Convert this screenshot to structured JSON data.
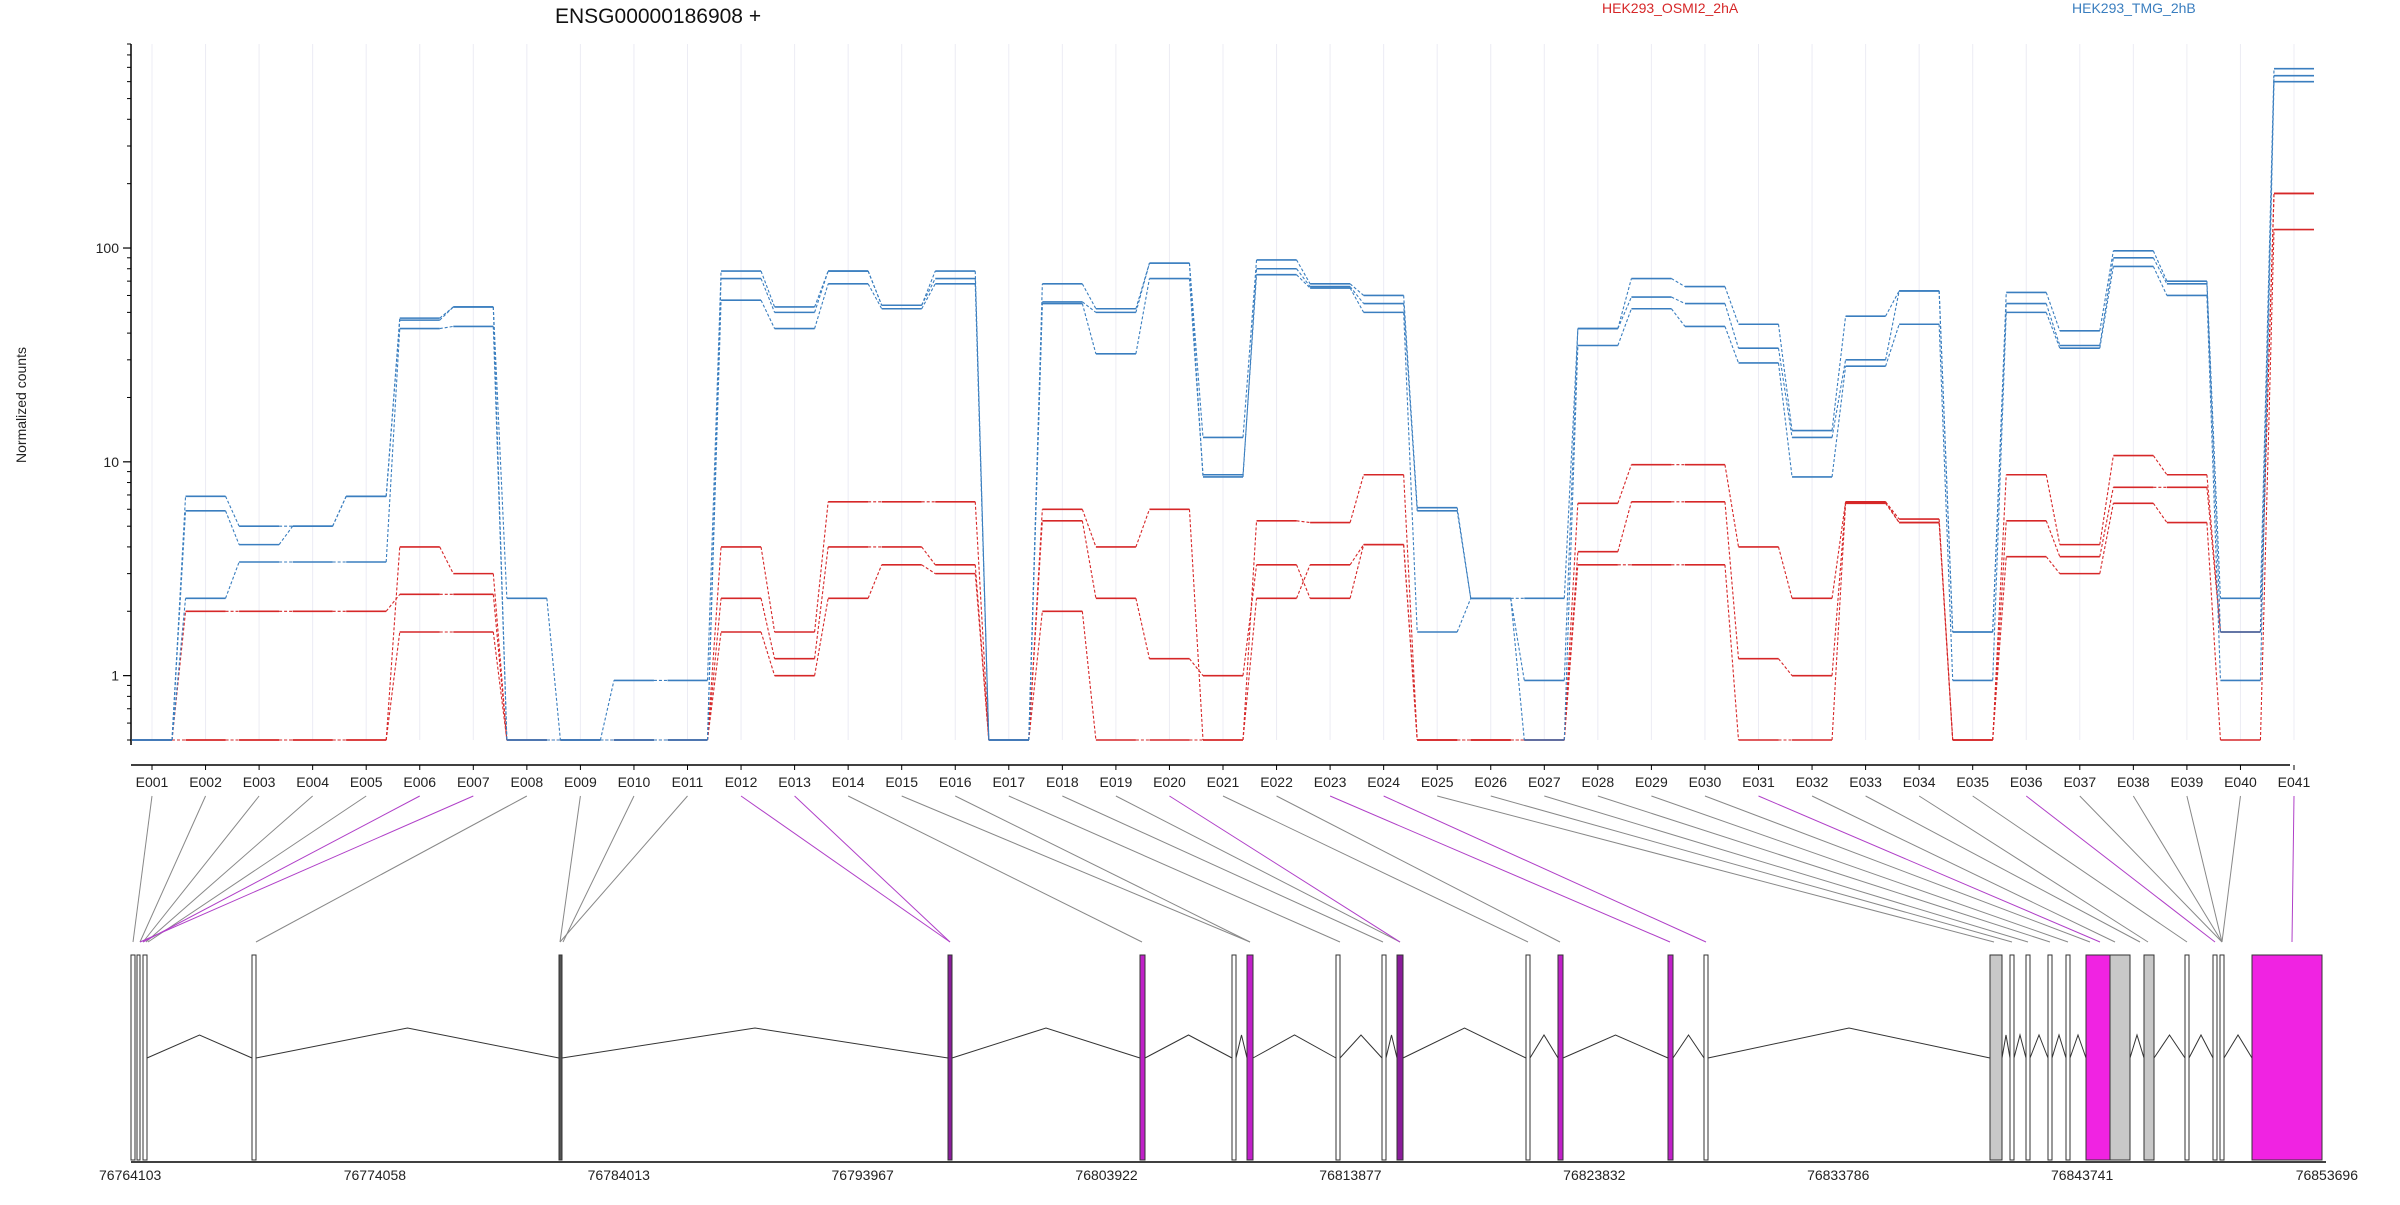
{
  "chart_data": {
    "type": "line",
    "title": "ENSG00000186908 +",
    "ylabel": "Normalized counts",
    "yscale": "log",
    "ylim": [
      0.5,
      900
    ],
    "grid": true,
    "legend_placement": "top",
    "y_ticks": [
      {
        "value": 1,
        "label": "1"
      },
      {
        "value": 10,
        "label": "10"
      },
      {
        "value": 100,
        "label": "100"
      }
    ],
    "categories": [
      "E001",
      "E002",
      "E003",
      "E004",
      "E005",
      "E006",
      "E007",
      "E008",
      "E009",
      "E010",
      "E011",
      "E012",
      "E013",
      "E014",
      "E015",
      "E016",
      "E017",
      "E018",
      "E019",
      "E020",
      "E021",
      "E022",
      "E023",
      "E024",
      "E025",
      "E026",
      "E027",
      "E028",
      "E029",
      "E030",
      "E031",
      "E032",
      "E033",
      "E034",
      "E035",
      "E036",
      "E037",
      "E038",
      "E039",
      "E040",
      "E041"
    ],
    "groups": [
      {
        "name": "HEK293_OSMI2_2hA",
        "color": "#d62728"
      },
      {
        "name": "HEK293_TMG_2hB",
        "color": "#3a7ebf"
      }
    ],
    "series": [
      {
        "group": 0,
        "values": [
          0.5,
          0.5,
          0.5,
          0.5,
          0.5,
          4.0,
          3.0,
          0.5,
          0.5,
          0.5,
          0.5,
          4.0,
          1.6,
          6.5,
          6.5,
          6.5,
          0.5,
          6.0,
          4.0,
          6.0,
          0.5,
          5.3,
          5.2,
          8.7,
          0.5,
          0.5,
          0.5,
          6.4,
          9.7,
          9.7,
          4.0,
          2.3,
          6.5,
          5.2,
          0.5,
          8.7,
          4.1,
          10.7,
          8.7,
          1.6,
          180
        ]
      },
      {
        "group": 0,
        "values": [
          0.5,
          2.0,
          2.0,
          2.0,
          2.0,
          2.4,
          2.4,
          0.5,
          0.5,
          0.5,
          0.5,
          2.3,
          1.2,
          4.0,
          4.0,
          3.3,
          0.5,
          5.3,
          2.3,
          1.2,
          1.0,
          3.3,
          2.3,
          4.1,
          0.5,
          0.5,
          0.5,
          3.8,
          6.5,
          6.5,
          1.2,
          1.0,
          6.5,
          5.4,
          0.5,
          5.3,
          3.6,
          7.6,
          7.6,
          1.6,
          180
        ]
      },
      {
        "group": 0,
        "values": [
          0.5,
          0.5,
          0.5,
          0.5,
          0.5,
          1.6,
          1.6,
          0.5,
          0.5,
          0.5,
          0.5,
          1.6,
          1.0,
          2.3,
          3.3,
          3.0,
          0.5,
          2.0,
          0.5,
          0.5,
          0.5,
          2.3,
          3.3,
          4.1,
          0.5,
          0.5,
          0.5,
          3.3,
          3.3,
          3.3,
          0.5,
          0.5,
          6.4,
          5.2,
          0.5,
          3.6,
          3.0,
          6.4,
          5.2,
          0.5,
          122
        ]
      },
      {
        "group": 1,
        "values": [
          0.5,
          6.9,
          5.0,
          5.0,
          6.9,
          46,
          53,
          2.3,
          0.5,
          0.95,
          0.95,
          78,
          53,
          78,
          54,
          78,
          0.5,
          68,
          52,
          85,
          13,
          88,
          68,
          60,
          6.1,
          2.3,
          2.3,
          42,
          72,
          66,
          44,
          14,
          48,
          63,
          1.6,
          62,
          41,
          97,
          70,
          2.3,
          690
        ]
      },
      {
        "group": 1,
        "values": [
          0.5,
          5.9,
          4.1,
          5.0,
          6.9,
          47,
          53,
          0.5,
          0.5,
          0.5,
          0.5,
          72,
          50,
          78,
          54,
          72,
          0.5,
          56,
          50,
          85,
          8.5,
          80,
          66,
          55,
          5.9,
          2.3,
          0.95,
          42,
          59,
          55,
          34,
          13,
          30,
          63,
          1.6,
          55,
          35,
          90,
          68,
          1.6,
          640
        ]
      },
      {
        "group": 1,
        "values": [
          0.5,
          2.3,
          3.4,
          3.4,
          3.4,
          42,
          43,
          0.5,
          0.5,
          0.5,
          0.5,
          57,
          42,
          68,
          52,
          68,
          0.5,
          55,
          32,
          72,
          8.7,
          75,
          65,
          50,
          1.6,
          2.3,
          0.5,
          35,
          52,
          43,
          29,
          8.5,
          28,
          44,
          0.95,
          50,
          34,
          82,
          60,
          0.95,
          600
        ]
      }
    ]
  },
  "gene_model": {
    "coordinates": [
      "76764103",
      "76774058",
      "76784013",
      "76793967",
      "76803922",
      "76813877",
      "76823832",
      "76833786",
      "76843741",
      "76853696"
    ]
  }
}
